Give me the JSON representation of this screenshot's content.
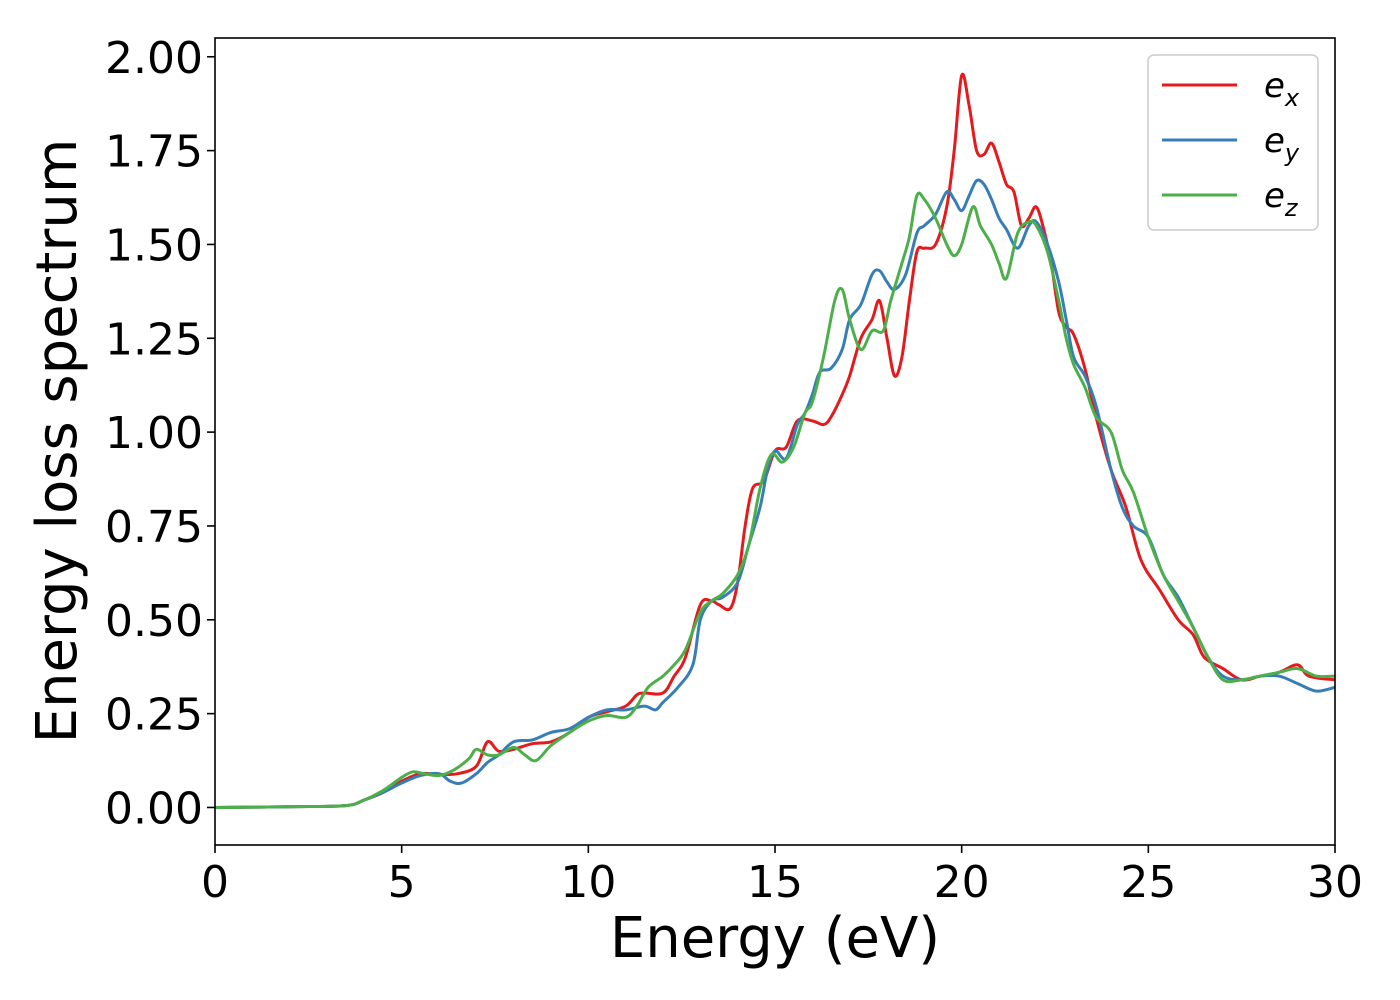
{
  "chart_data": {
    "type": "line",
    "xlabel": "Energy (eV)",
    "ylabel": "Energy loss spectrum",
    "xlim": [
      0,
      30
    ],
    "ylim": [
      -0.1,
      2.05
    ],
    "x_ticks": [
      0,
      5,
      10,
      15,
      20,
      25,
      30
    ],
    "x_tick_labels": [
      "0",
      "5",
      "10",
      "15",
      "20",
      "25",
      "30"
    ],
    "y_ticks": [
      0,
      0.25,
      0.5,
      0.75,
      1.0,
      1.25,
      1.5,
      1.75,
      2.0
    ],
    "y_tick_labels": [
      "0.00",
      "0.25",
      "0.50",
      "0.75",
      "1.00",
      "1.25",
      "1.50",
      "1.75",
      "2.00"
    ],
    "grid": false,
    "legend_position": "top-right",
    "series": [
      {
        "name": "e_x",
        "legend_base": "e",
        "legend_sub": "x",
        "color": "#e41a1c",
        "points": [
          [
            0,
            0
          ],
          [
            2,
            0.002
          ],
          [
            3.5,
            0.005
          ],
          [
            4,
            0.02
          ],
          [
            4.5,
            0.04
          ],
          [
            5,
            0.07
          ],
          [
            5.5,
            0.09
          ],
          [
            6,
            0.088
          ],
          [
            6.5,
            0.09
          ],
          [
            7,
            0.11
          ],
          [
            7.3,
            0.175
          ],
          [
            7.6,
            0.15
          ],
          [
            8,
            0.155
          ],
          [
            8.5,
            0.17
          ],
          [
            9,
            0.175
          ],
          [
            9.5,
            0.2
          ],
          [
            10,
            0.24
          ],
          [
            10.5,
            0.255
          ],
          [
            11,
            0.27
          ],
          [
            11.3,
            0.3
          ],
          [
            11.5,
            0.305
          ],
          [
            12,
            0.305
          ],
          [
            12.3,
            0.35
          ],
          [
            12.6,
            0.4
          ],
          [
            13,
            0.54
          ],
          [
            13.3,
            0.55
          ],
          [
            13.5,
            0.54
          ],
          [
            13.8,
            0.53
          ],
          [
            14,
            0.6
          ],
          [
            14.2,
            0.75
          ],
          [
            14.4,
            0.85
          ],
          [
            14.7,
            0.87
          ],
          [
            15,
            0.95
          ],
          [
            15.3,
            0.96
          ],
          [
            15.6,
            1.03
          ],
          [
            16,
            1.03
          ],
          [
            16.3,
            1.02
          ],
          [
            16.5,
            1.04
          ],
          [
            16.8,
            1.1
          ],
          [
            17,
            1.15
          ],
          [
            17.3,
            1.25
          ],
          [
            17.6,
            1.3
          ],
          [
            17.8,
            1.35
          ],
          [
            18,
            1.25
          ],
          [
            18.2,
            1.15
          ],
          [
            18.4,
            1.2
          ],
          [
            18.6,
            1.35
          ],
          [
            18.8,
            1.48
          ],
          [
            19,
            1.49
          ],
          [
            19.3,
            1.5
          ],
          [
            19.6,
            1.6
          ],
          [
            19.8,
            1.75
          ],
          [
            20,
            1.95
          ],
          [
            20.2,
            1.87
          ],
          [
            20.4,
            1.75
          ],
          [
            20.6,
            1.74
          ],
          [
            20.8,
            1.77
          ],
          [
            21,
            1.72
          ],
          [
            21.2,
            1.66
          ],
          [
            21.4,
            1.64
          ],
          [
            21.6,
            1.55
          ],
          [
            21.8,
            1.57
          ],
          [
            22,
            1.6
          ],
          [
            22.2,
            1.54
          ],
          [
            22.4,
            1.45
          ],
          [
            22.6,
            1.32
          ],
          [
            22.8,
            1.28
          ],
          [
            23,
            1.26
          ],
          [
            23.3,
            1.17
          ],
          [
            23.6,
            1.04
          ],
          [
            24,
            0.9
          ],
          [
            24.4,
            0.8
          ],
          [
            24.8,
            0.66
          ],
          [
            25.3,
            0.58
          ],
          [
            25.8,
            0.5
          ],
          [
            26.2,
            0.46
          ],
          [
            26.5,
            0.4
          ],
          [
            27,
            0.37
          ],
          [
            27.5,
            0.34
          ],
          [
            28,
            0.35
          ],
          [
            28.5,
            0.36
          ],
          [
            29,
            0.38
          ],
          [
            29.3,
            0.35
          ],
          [
            30,
            0.34
          ]
        ]
      },
      {
        "name": "e_y",
        "legend_base": "e",
        "legend_sub": "y",
        "color": "#377eb8",
        "points": [
          [
            0,
            0
          ],
          [
            2,
            0.002
          ],
          [
            3.5,
            0.005
          ],
          [
            4,
            0.02
          ],
          [
            4.5,
            0.04
          ],
          [
            5,
            0.065
          ],
          [
            5.5,
            0.085
          ],
          [
            6,
            0.09
          ],
          [
            6.3,
            0.07
          ],
          [
            6.6,
            0.065
          ],
          [
            7,
            0.09
          ],
          [
            7.3,
            0.12
          ],
          [
            7.6,
            0.14
          ],
          [
            8,
            0.175
          ],
          [
            8.5,
            0.18
          ],
          [
            9,
            0.2
          ],
          [
            9.5,
            0.21
          ],
          [
            10,
            0.24
          ],
          [
            10.5,
            0.26
          ],
          [
            11,
            0.26
          ],
          [
            11.5,
            0.27
          ],
          [
            11.8,
            0.26
          ],
          [
            12,
            0.28
          ],
          [
            12.4,
            0.32
          ],
          [
            12.8,
            0.38
          ],
          [
            13,
            0.5
          ],
          [
            13.3,
            0.55
          ],
          [
            13.6,
            0.56
          ],
          [
            14,
            0.6
          ],
          [
            14.3,
            0.7
          ],
          [
            14.6,
            0.8
          ],
          [
            14.8,
            0.9
          ],
          [
            15,
            0.95
          ],
          [
            15.3,
            0.93
          ],
          [
            15.6,
            1.02
          ],
          [
            15.8,
            1.05
          ],
          [
            16,
            1.1
          ],
          [
            16.2,
            1.16
          ],
          [
            16.5,
            1.17
          ],
          [
            16.8,
            1.22
          ],
          [
            17,
            1.3
          ],
          [
            17.3,
            1.34
          ],
          [
            17.6,
            1.42
          ],
          [
            17.8,
            1.43
          ],
          [
            18,
            1.4
          ],
          [
            18.2,
            1.38
          ],
          [
            18.5,
            1.42
          ],
          [
            18.8,
            1.53
          ],
          [
            19,
            1.55
          ],
          [
            19.3,
            1.58
          ],
          [
            19.6,
            1.64
          ],
          [
            19.8,
            1.62
          ],
          [
            20,
            1.59
          ],
          [
            20.2,
            1.63
          ],
          [
            20.4,
            1.67
          ],
          [
            20.6,
            1.66
          ],
          [
            20.8,
            1.62
          ],
          [
            21,
            1.57
          ],
          [
            21.2,
            1.54
          ],
          [
            21.5,
            1.49
          ],
          [
            21.8,
            1.55
          ],
          [
            22,
            1.56
          ],
          [
            22.3,
            1.5
          ],
          [
            22.6,
            1.4
          ],
          [
            22.8,
            1.3
          ],
          [
            23,
            1.2
          ],
          [
            23.3,
            1.15
          ],
          [
            23.6,
            1.07
          ],
          [
            24,
            0.9
          ],
          [
            24.3,
            0.8
          ],
          [
            24.6,
            0.75
          ],
          [
            25,
            0.72
          ],
          [
            25.4,
            0.62
          ],
          [
            25.8,
            0.56
          ],
          [
            26.2,
            0.48
          ],
          [
            26.6,
            0.4
          ],
          [
            27,
            0.35
          ],
          [
            27.5,
            0.34
          ],
          [
            28,
            0.35
          ],
          [
            28.5,
            0.35
          ],
          [
            29,
            0.33
          ],
          [
            29.5,
            0.31
          ],
          [
            30,
            0.32
          ]
        ]
      },
      {
        "name": "e_z",
        "legend_base": "e",
        "legend_sub": "z",
        "color": "#4daf4a",
        "points": [
          [
            0,
            0
          ],
          [
            2,
            0.002
          ],
          [
            3.5,
            0.005
          ],
          [
            4,
            0.02
          ],
          [
            4.5,
            0.045
          ],
          [
            5,
            0.08
          ],
          [
            5.3,
            0.095
          ],
          [
            5.6,
            0.09
          ],
          [
            6,
            0.085
          ],
          [
            6.4,
            0.1
          ],
          [
            6.8,
            0.13
          ],
          [
            7,
            0.155
          ],
          [
            7.3,
            0.14
          ],
          [
            7.6,
            0.14
          ],
          [
            8,
            0.16
          ],
          [
            8.3,
            0.14
          ],
          [
            8.6,
            0.125
          ],
          [
            9,
            0.165
          ],
          [
            9.5,
            0.2
          ],
          [
            10,
            0.23
          ],
          [
            10.5,
            0.245
          ],
          [
            11,
            0.24
          ],
          [
            11.3,
            0.27
          ],
          [
            11.6,
            0.32
          ],
          [
            12,
            0.35
          ],
          [
            12.3,
            0.38
          ],
          [
            12.6,
            0.42
          ],
          [
            13,
            0.52
          ],
          [
            13.3,
            0.55
          ],
          [
            13.6,
            0.57
          ],
          [
            14,
            0.62
          ],
          [
            14.3,
            0.7
          ],
          [
            14.6,
            0.85
          ],
          [
            14.9,
            0.94
          ],
          [
            15.2,
            0.92
          ],
          [
            15.5,
            0.96
          ],
          [
            15.8,
            1.05
          ],
          [
            16,
            1.08
          ],
          [
            16.3,
            1.2
          ],
          [
            16.6,
            1.35
          ],
          [
            16.8,
            1.38
          ],
          [
            17,
            1.3
          ],
          [
            17.3,
            1.22
          ],
          [
            17.6,
            1.27
          ],
          [
            17.9,
            1.27
          ],
          [
            18.1,
            1.35
          ],
          [
            18.4,
            1.45
          ],
          [
            18.6,
            1.52
          ],
          [
            18.8,
            1.63
          ],
          [
            19,
            1.62
          ],
          [
            19.3,
            1.57
          ],
          [
            19.6,
            1.5
          ],
          [
            19.8,
            1.47
          ],
          [
            20,
            1.5
          ],
          [
            20.3,
            1.6
          ],
          [
            20.5,
            1.55
          ],
          [
            20.8,
            1.5
          ],
          [
            21,
            1.45
          ],
          [
            21.2,
            1.41
          ],
          [
            21.5,
            1.53
          ],
          [
            21.8,
            1.56
          ],
          [
            22,
            1.55
          ],
          [
            22.3,
            1.48
          ],
          [
            22.6,
            1.35
          ],
          [
            22.8,
            1.25
          ],
          [
            23,
            1.18
          ],
          [
            23.3,
            1.12
          ],
          [
            23.6,
            1.04
          ],
          [
            24,
            1.0
          ],
          [
            24.3,
            0.9
          ],
          [
            24.6,
            0.84
          ],
          [
            25,
            0.72
          ],
          [
            25.4,
            0.62
          ],
          [
            25.8,
            0.55
          ],
          [
            26.2,
            0.48
          ],
          [
            26.6,
            0.4
          ],
          [
            27,
            0.34
          ],
          [
            27.5,
            0.34
          ],
          [
            28,
            0.35
          ],
          [
            28.5,
            0.36
          ],
          [
            29,
            0.37
          ],
          [
            29.5,
            0.35
          ],
          [
            30,
            0.35
          ]
        ]
      }
    ]
  }
}
